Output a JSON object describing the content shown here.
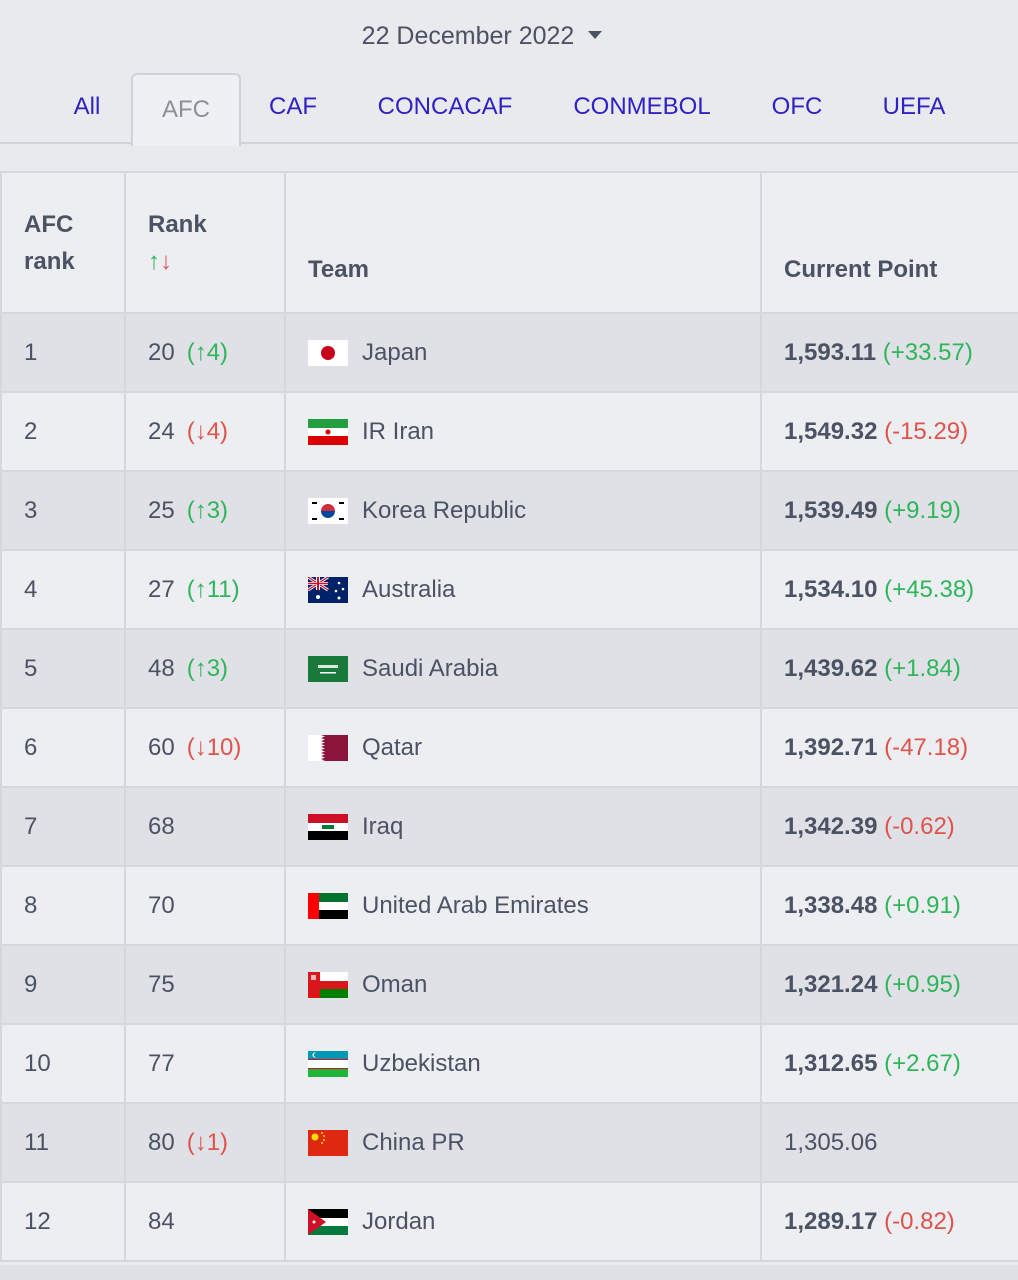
{
  "date_picker": {
    "label": "22 December 2022"
  },
  "tabs": [
    {
      "label": "All",
      "active": false
    },
    {
      "label": "AFC",
      "active": true
    },
    {
      "label": "CAF",
      "active": false
    },
    {
      "label": "CONCACAF",
      "active": false
    },
    {
      "label": "CONMEBOL",
      "active": false
    },
    {
      "label": "OFC",
      "active": false
    },
    {
      "label": "UEFA",
      "active": false
    }
  ],
  "table": {
    "headers": {
      "afc_rank_line1": "AFC",
      "afc_rank_line2": "rank",
      "rank": "Rank",
      "rank_sort_up": "↑",
      "rank_sort_down": "↓",
      "team": "Team",
      "points": "Current Point"
    },
    "rows": [
      {
        "afc_rank": "1",
        "rank": "20",
        "change": "(↑4)",
        "dir": "up",
        "team": "Japan",
        "flag": "japan-flag-icon",
        "points": "1,593.11",
        "points_change": "(+33.57)"
      },
      {
        "afc_rank": "2",
        "rank": "24",
        "change": "(↓4)",
        "dir": "down",
        "team": "IR Iran",
        "flag": "iran-flag-icon",
        "points": "1,549.32",
        "points_change": "(-15.29)"
      },
      {
        "afc_rank": "3",
        "rank": "25",
        "change": "(↑3)",
        "dir": "up",
        "team": "Korea Republic",
        "flag": "korea-flag-icon",
        "points": "1,539.49",
        "points_change": "(+9.19)"
      },
      {
        "afc_rank": "4",
        "rank": "27",
        "change": "(↑11)",
        "dir": "up",
        "team": "Australia",
        "flag": "australia-flag-icon",
        "points": "1,534.10",
        "points_change": "(+45.38)"
      },
      {
        "afc_rank": "5",
        "rank": "48",
        "change": "(↑3)",
        "dir": "up",
        "team": "Saudi Arabia",
        "flag": "saudi-arabia-flag-icon",
        "points": "1,439.62",
        "points_change": "(+1.84)"
      },
      {
        "afc_rank": "6",
        "rank": "60",
        "change": "(↓10)",
        "dir": "down",
        "team": "Qatar",
        "flag": "qatar-flag-icon",
        "points": "1,392.71",
        "points_change": "(-47.18)"
      },
      {
        "afc_rank": "7",
        "rank": "68",
        "change": "",
        "dir": "",
        "team": "Iraq",
        "flag": "iraq-flag-icon",
        "points": "1,342.39",
        "points_change": "(-0.62)"
      },
      {
        "afc_rank": "8",
        "rank": "70",
        "change": "",
        "dir": "",
        "team": "United Arab Emirates",
        "flag": "uae-flag-icon",
        "points": "1,338.48",
        "points_change": "(+0.91)"
      },
      {
        "afc_rank": "9",
        "rank": "75",
        "change": "",
        "dir": "",
        "team": "Oman",
        "flag": "oman-flag-icon",
        "points": "1,321.24",
        "points_change": "(+0.95)"
      },
      {
        "afc_rank": "10",
        "rank": "77",
        "change": "",
        "dir": "",
        "team": "Uzbekistan",
        "flag": "uzbekistan-flag-icon",
        "points": "1,312.65",
        "points_change": "(+2.67)"
      },
      {
        "afc_rank": "11",
        "rank": "80",
        "change": "(↓1)",
        "dir": "down",
        "team": "China PR",
        "flag": "china-flag-icon",
        "points": "1,305.06",
        "points_change": ""
      },
      {
        "afc_rank": "12",
        "rank": "84",
        "change": "",
        "dir": "",
        "team": "Jordan",
        "flag": "jordan-flag-icon",
        "points": "1,289.17",
        "points_change": "(-0.82)"
      }
    ]
  },
  "colors": {
    "link": "#2f21c2",
    "up": "#2fb55a",
    "down": "#e0534c",
    "text": "#4b5263"
  }
}
